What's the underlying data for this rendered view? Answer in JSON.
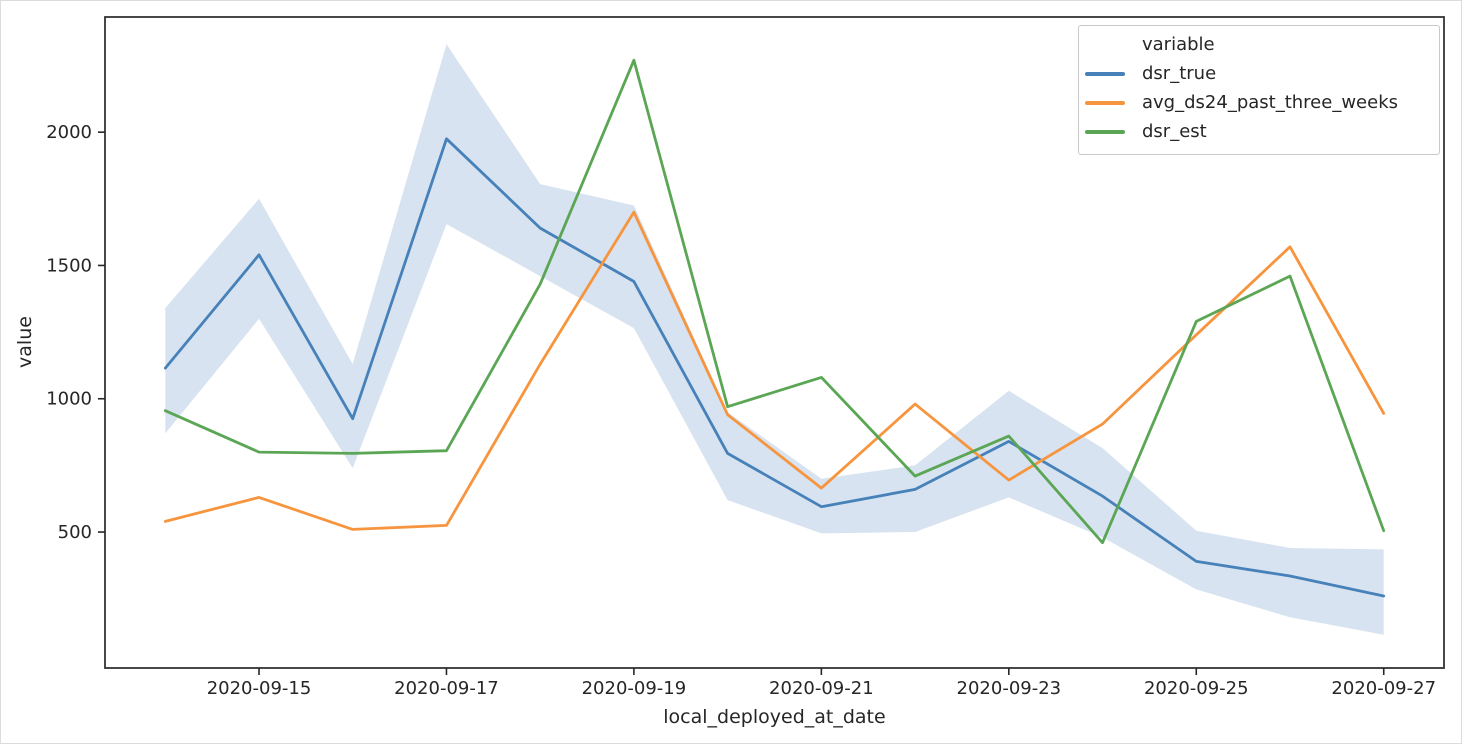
{
  "chart_data": {
    "type": "line",
    "title": "",
    "xlabel": "local_deployed_at_date",
    "ylabel": "value",
    "x": [
      "2020-09-14",
      "2020-09-15",
      "2020-09-16",
      "2020-09-17",
      "2020-09-18",
      "2020-09-19",
      "2020-09-20",
      "2020-09-21",
      "2020-09-22",
      "2020-09-23",
      "2020-09-24",
      "2020-09-25",
      "2020-09-26",
      "2020-09-27"
    ],
    "x_tick_labels": [
      "2020-09-15",
      "2020-09-17",
      "2020-09-19",
      "2020-09-21",
      "2020-09-23",
      "2020-09-25",
      "2020-09-27"
    ],
    "x_tick_indices": [
      1,
      3,
      5,
      7,
      9,
      11,
      13
    ],
    "y_ticks": [
      500,
      1000,
      1500,
      2000
    ],
    "ylim": [
      -10,
      2432
    ],
    "x_pad_days": 0.643,
    "grid": false,
    "legend": {
      "title": "variable",
      "position": "upper right"
    },
    "frame_color": "#333333",
    "tick_color": "#262626",
    "series": [
      {
        "name": "dsr_true",
        "color": "#4781BA",
        "values": [
          1115,
          1540,
          925,
          1975,
          1640,
          1440,
          795,
          595,
          660,
          840,
          635,
          390,
          335,
          260
        ],
        "band_low": [
          870,
          1300,
          740,
          1655,
          1460,
          1265,
          620,
          495,
          500,
          630,
          480,
          285,
          180,
          115
        ],
        "band_high": [
          1340,
          1750,
          1130,
          2330,
          1805,
          1725,
          950,
          700,
          750,
          1030,
          815,
          505,
          440,
          435
        ],
        "band_opacity": 0.22
      },
      {
        "name": "avg_ds24_past_three_weeks",
        "color": "#F7953F",
        "values": [
          540,
          630,
          510,
          525,
          1130,
          1700,
          940,
          665,
          980,
          695,
          905,
          1240,
          1570,
          945
        ]
      },
      {
        "name": "dsr_est",
        "color": "#5BA655",
        "values": [
          955,
          800,
          795,
          805,
          1430,
          2270,
          970,
          1080,
          710,
          860,
          460,
          1290,
          1460,
          505
        ]
      }
    ]
  }
}
